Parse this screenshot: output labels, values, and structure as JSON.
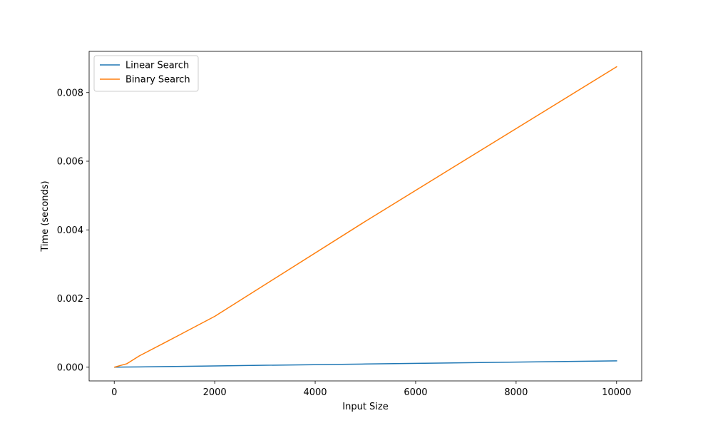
{
  "chart_data": {
    "type": "line",
    "title": "",
    "xlabel": "Input Size",
    "ylabel": "Time (seconds)",
    "xlim": [
      -500,
      10500
    ],
    "ylim": [
      -0.0004,
      0.0092
    ],
    "xticks": [
      0,
      2000,
      4000,
      6000,
      8000,
      10000
    ],
    "xtick_labels": [
      "0",
      "2000",
      "4000",
      "6000",
      "8000",
      "10000"
    ],
    "yticks": [
      0.0,
      0.002,
      0.004,
      0.006,
      0.008
    ],
    "ytick_labels": [
      "0.000",
      "0.002",
      "0.004",
      "0.006",
      "0.008"
    ],
    "grid": false,
    "legend_position": "top-left",
    "x": [
      10,
      100,
      250,
      500,
      1000,
      2000,
      5000,
      10000
    ],
    "series": [
      {
        "name": "Linear Search",
        "color": "#1f77b4",
        "values": [
          0.0,
          2e-06,
          4e-06,
          9e-06,
          1.8e-05,
          3.7e-05,
          9.3e-05,
          0.000185
        ]
      },
      {
        "name": "Binary Search",
        "color": "#ff7f0e",
        "values": [
          2e-06,
          4e-05,
          0.0001,
          0.00033,
          0.00071,
          0.00148,
          0.00425,
          0.00875
        ]
      }
    ]
  }
}
